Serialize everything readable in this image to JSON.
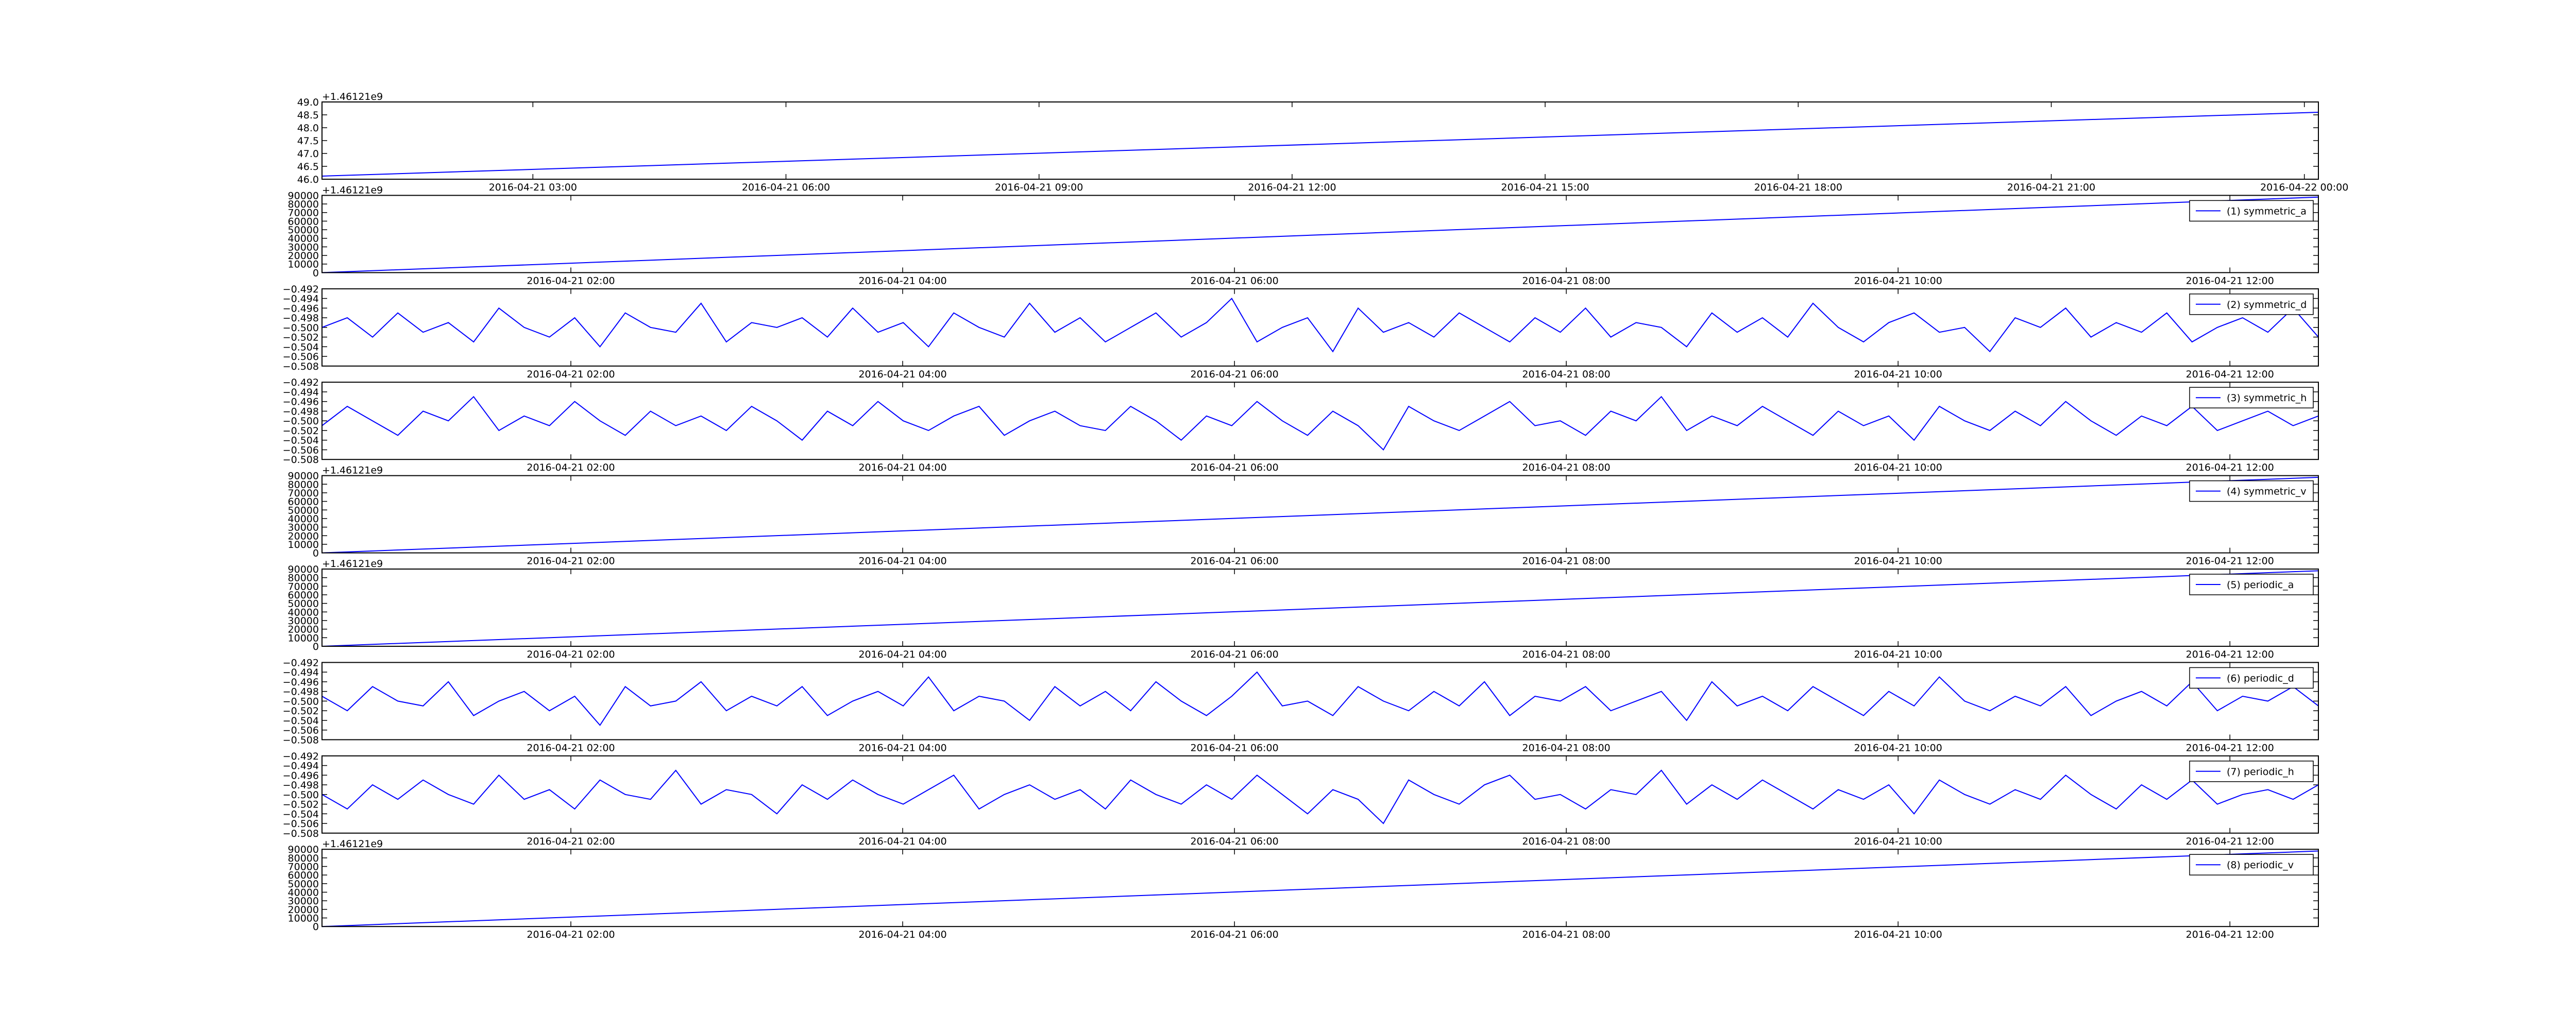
{
  "chart_data": [
    {
      "type": "line",
      "offset_text": "+1.46121e9",
      "color": "#0000ff",
      "values": [
        46.12,
        48.6
      ],
      "xlim": [
        "2016-04-21 00:30",
        "2016-04-22 00:10"
      ],
      "xticks": [
        "2016-04-21 03:00",
        "2016-04-21 06:00",
        "2016-04-21 09:00",
        "2016-04-21 12:00",
        "2016-04-21 15:00",
        "2016-04-21 18:00",
        "2016-04-21 21:00",
        "2016-04-22 00:00"
      ],
      "ylim": [
        46.0,
        49.0
      ],
      "yticks": [
        {
          "value": 46,
          "label": "46.0"
        },
        46.5,
        {
          "value": 47,
          "label": "47.0"
        },
        47.5,
        {
          "value": 48,
          "label": "48.0"
        },
        48.5,
        {
          "value": 49,
          "label": "49.0"
        }
      ]
    },
    {
      "type": "line",
      "offset_text": "+1.46121e9",
      "legend": "upper right",
      "series": [
        {
          "name": "(1) symmetric_a",
          "color": "#0000ff",
          "values": [
            0,
            88000
          ]
        }
      ],
      "xlim": [
        "2016-04-21 00:30",
        "2016-04-21 12:32"
      ],
      "xticks": [
        "2016-04-21 02:00",
        "2016-04-21 04:00",
        "2016-04-21 06:00",
        "2016-04-21 08:00",
        "2016-04-21 10:00",
        "2016-04-21 12:00"
      ],
      "ylim": [
        0,
        90000
      ],
      "yticks": [
        0,
        10000,
        20000,
        30000,
        40000,
        50000,
        60000,
        70000,
        80000,
        90000
      ]
    },
    {
      "type": "line",
      "legend": "upper right",
      "series": [
        {
          "name": "(2) symmetric_d",
          "color": "#0000ff",
          "values": [
            -0.5,
            -0.498,
            -0.502,
            -0.497,
            -0.501,
            -0.499,
            -0.503,
            -0.496,
            -0.5,
            -0.502,
            -0.498,
            -0.504,
            -0.497,
            -0.5,
            -0.501,
            -0.495,
            -0.503,
            -0.499,
            -0.5,
            -0.498,
            -0.502,
            -0.496,
            -0.501,
            -0.499,
            -0.504,
            -0.497,
            -0.5,
            -0.502,
            -0.495,
            -0.501,
            -0.498,
            -0.503,
            -0.5,
            -0.497,
            -0.502,
            -0.499,
            -0.494,
            -0.503,
            -0.5,
            -0.498,
            -0.505,
            -0.496,
            -0.501,
            -0.499,
            -0.502,
            -0.497,
            -0.5,
            -0.503,
            -0.498,
            -0.501,
            -0.496,
            -0.502,
            -0.499,
            -0.5,
            -0.504,
            -0.497,
            -0.501,
            -0.498,
            -0.502,
            -0.495,
            -0.5,
            -0.503,
            -0.499,
            -0.497,
            -0.501,
            -0.5,
            -0.505,
            -0.498,
            -0.5,
            -0.496,
            -0.502,
            -0.499,
            -0.501,
            -0.497,
            -0.503,
            -0.5,
            -0.498,
            -0.501,
            -0.496,
            -0.502
          ]
        }
      ],
      "xlim": [
        "2016-04-21 00:30",
        "2016-04-21 12:32"
      ],
      "xticks": [
        "2016-04-21 02:00",
        "2016-04-21 04:00",
        "2016-04-21 06:00",
        "2016-04-21 08:00",
        "2016-04-21 10:00",
        "2016-04-21 12:00"
      ],
      "ylim": [
        -0.508,
        -0.492
      ],
      "yticks": [
        {
          "value": -0.508,
          "label": "−0.508"
        },
        {
          "value": -0.506,
          "label": "−0.506"
        },
        {
          "value": -0.504,
          "label": "−0.504"
        },
        {
          "value": -0.502,
          "label": "−0.502"
        },
        {
          "value": -0.5,
          "label": "−0.500"
        },
        {
          "value": -0.498,
          "label": "−0.498"
        },
        {
          "value": -0.496,
          "label": "−0.496"
        },
        {
          "value": -0.494,
          "label": "−0.494"
        },
        {
          "value": -0.492,
          "label": "−0.492"
        }
      ]
    },
    {
      "type": "line",
      "legend": "upper right",
      "series": [
        {
          "name": "(3) symmetric_h",
          "color": "#0000ff",
          "values": [
            -0.501,
            -0.497,
            -0.5,
            -0.503,
            -0.498,
            -0.5,
            -0.495,
            -0.502,
            -0.499,
            -0.501,
            -0.496,
            -0.5,
            -0.503,
            -0.498,
            -0.501,
            -0.499,
            -0.502,
            -0.497,
            -0.5,
            -0.504,
            -0.498,
            -0.501,
            -0.496,
            -0.5,
            -0.502,
            -0.499,
            -0.497,
            -0.503,
            -0.5,
            -0.498,
            -0.501,
            -0.502,
            -0.497,
            -0.5,
            -0.504,
            -0.499,
            -0.501,
            -0.496,
            -0.5,
            -0.503,
            -0.498,
            -0.501,
            -0.506,
            -0.497,
            -0.5,
            -0.502,
            -0.499,
            -0.496,
            -0.501,
            -0.5,
            -0.503,
            -0.498,
            -0.5,
            -0.495,
            -0.502,
            -0.499,
            -0.501,
            -0.497,
            -0.5,
            -0.503,
            -0.498,
            -0.501,
            -0.499,
            -0.504,
            -0.497,
            -0.5,
            -0.502,
            -0.498,
            -0.501,
            -0.496,
            -0.5,
            -0.503,
            -0.499,
            -0.501,
            -0.497,
            -0.502,
            -0.5,
            -0.498,
            -0.501,
            -0.499
          ]
        }
      ],
      "xlim": [
        "2016-04-21 00:30",
        "2016-04-21 12:32"
      ],
      "xticks": [
        "2016-04-21 02:00",
        "2016-04-21 04:00",
        "2016-04-21 06:00",
        "2016-04-21 08:00",
        "2016-04-21 10:00",
        "2016-04-21 12:00"
      ],
      "ylim": [
        -0.508,
        -0.492
      ],
      "yticks": [
        {
          "value": -0.508,
          "label": "−0.508"
        },
        {
          "value": -0.506,
          "label": "−0.506"
        },
        {
          "value": -0.504,
          "label": "−0.504"
        },
        {
          "value": -0.502,
          "label": "−0.502"
        },
        {
          "value": -0.5,
          "label": "−0.500"
        },
        {
          "value": -0.498,
          "label": "−0.498"
        },
        {
          "value": -0.496,
          "label": "−0.496"
        },
        {
          "value": -0.494,
          "label": "−0.494"
        },
        {
          "value": -0.492,
          "label": "−0.492"
        }
      ]
    },
    {
      "type": "line",
      "offset_text": "+1.46121e9",
      "legend": "upper right",
      "series": [
        {
          "name": "(4) symmetric_v",
          "color": "#0000ff",
          "values": [
            0,
            88000
          ]
        }
      ],
      "xlim": [
        "2016-04-21 00:30",
        "2016-04-21 12:32"
      ],
      "xticks": [
        "2016-04-21 02:00",
        "2016-04-21 04:00",
        "2016-04-21 06:00",
        "2016-04-21 08:00",
        "2016-04-21 10:00",
        "2016-04-21 12:00"
      ],
      "ylim": [
        0,
        90000
      ],
      "yticks": [
        0,
        10000,
        20000,
        30000,
        40000,
        50000,
        60000,
        70000,
        80000,
        90000
      ]
    },
    {
      "type": "line",
      "offset_text": "+1.46121e9",
      "legend": "upper right",
      "series": [
        {
          "name": "(5) periodic_a",
          "color": "#0000ff",
          "values": [
            0,
            88000
          ]
        }
      ],
      "xlim": [
        "2016-04-21 00:30",
        "2016-04-21 12:32"
      ],
      "xticks": [
        "2016-04-21 02:00",
        "2016-04-21 04:00",
        "2016-04-21 06:00",
        "2016-04-21 08:00",
        "2016-04-21 10:00",
        "2016-04-21 12:00"
      ],
      "ylim": [
        0,
        90000
      ],
      "yticks": [
        0,
        10000,
        20000,
        30000,
        40000,
        50000,
        60000,
        70000,
        80000,
        90000
      ]
    },
    {
      "type": "line",
      "legend": "upper right",
      "series": [
        {
          "name": "(6) periodic_d",
          "color": "#0000ff",
          "values": [
            -0.499,
            -0.502,
            -0.497,
            -0.5,
            -0.501,
            -0.496,
            -0.503,
            -0.5,
            -0.498,
            -0.502,
            -0.499,
            -0.505,
            -0.497,
            -0.501,
            -0.5,
            -0.496,
            -0.502,
            -0.499,
            -0.501,
            -0.497,
            -0.503,
            -0.5,
            -0.498,
            -0.501,
            -0.495,
            -0.502,
            -0.499,
            -0.5,
            -0.504,
            -0.497,
            -0.501,
            -0.498,
            -0.502,
            -0.496,
            -0.5,
            -0.503,
            -0.499,
            -0.494,
            -0.501,
            -0.5,
            -0.503,
            -0.497,
            -0.5,
            -0.502,
            -0.498,
            -0.501,
            -0.496,
            -0.503,
            -0.499,
            -0.5,
            -0.497,
            -0.502,
            -0.5,
            -0.498,
            -0.504,
            -0.496,
            -0.501,
            -0.499,
            -0.502,
            -0.497,
            -0.5,
            -0.503,
            -0.498,
            -0.501,
            -0.495,
            -0.5,
            -0.502,
            -0.499,
            -0.501,
            -0.497,
            -0.503,
            -0.5,
            -0.498,
            -0.501,
            -0.496,
            -0.502,
            -0.499,
            -0.5,
            -0.497,
            -0.501
          ]
        }
      ],
      "xlim": [
        "2016-04-21 00:30",
        "2016-04-21 12:32"
      ],
      "xticks": [
        "2016-04-21 02:00",
        "2016-04-21 04:00",
        "2016-04-21 06:00",
        "2016-04-21 08:00",
        "2016-04-21 10:00",
        "2016-04-21 12:00"
      ],
      "ylim": [
        -0.508,
        -0.492
      ],
      "yticks": [
        {
          "value": -0.508,
          "label": "−0.508"
        },
        {
          "value": -0.506,
          "label": "−0.506"
        },
        {
          "value": -0.504,
          "label": "−0.504"
        },
        {
          "value": -0.502,
          "label": "−0.502"
        },
        {
          "value": -0.5,
          "label": "−0.500"
        },
        {
          "value": -0.498,
          "label": "−0.498"
        },
        {
          "value": -0.496,
          "label": "−0.496"
        },
        {
          "value": -0.494,
          "label": "−0.494"
        },
        {
          "value": -0.492,
          "label": "−0.492"
        }
      ]
    },
    {
      "type": "line",
      "legend": "upper right",
      "series": [
        {
          "name": "(7) periodic_h",
          "color": "#0000ff",
          "values": [
            -0.5,
            -0.503,
            -0.498,
            -0.501,
            -0.497,
            -0.5,
            -0.502,
            -0.496,
            -0.501,
            -0.499,
            -0.503,
            -0.497,
            -0.5,
            -0.501,
            -0.495,
            -0.502,
            -0.499,
            -0.5,
            -0.504,
            -0.498,
            -0.501,
            -0.497,
            -0.5,
            -0.502,
            -0.499,
            -0.496,
            -0.503,
            -0.5,
            -0.498,
            -0.501,
            -0.499,
            -0.503,
            -0.497,
            -0.5,
            -0.502,
            -0.498,
            -0.501,
            -0.496,
            -0.5,
            -0.504,
            -0.499,
            -0.501,
            -0.506,
            -0.497,
            -0.5,
            -0.502,
            -0.498,
            -0.496,
            -0.501,
            -0.5,
            -0.503,
            -0.499,
            -0.5,
            -0.495,
            -0.502,
            -0.498,
            -0.501,
            -0.497,
            -0.5,
            -0.503,
            -0.499,
            -0.501,
            -0.498,
            -0.504,
            -0.497,
            -0.5,
            -0.502,
            -0.499,
            -0.501,
            -0.496,
            -0.5,
            -0.503,
            -0.498,
            -0.501,
            -0.497,
            -0.502,
            -0.5,
            -0.499,
            -0.501,
            -0.498
          ]
        }
      ],
      "xlim": [
        "2016-04-21 00:30",
        "2016-04-21 12:32"
      ],
      "xticks": [
        "2016-04-21 02:00",
        "2016-04-21 04:00",
        "2016-04-21 06:00",
        "2016-04-21 08:00",
        "2016-04-21 10:00",
        "2016-04-21 12:00"
      ],
      "ylim": [
        -0.508,
        -0.492
      ],
      "yticks": [
        {
          "value": -0.508,
          "label": "−0.508"
        },
        {
          "value": -0.506,
          "label": "−0.506"
        },
        {
          "value": -0.504,
          "label": "−0.504"
        },
        {
          "value": -0.502,
          "label": "−0.502"
        },
        {
          "value": -0.5,
          "label": "−0.500"
        },
        {
          "value": -0.498,
          "label": "−0.498"
        },
        {
          "value": -0.496,
          "label": "−0.496"
        },
        {
          "value": -0.494,
          "label": "−0.494"
        },
        {
          "value": -0.492,
          "label": "−0.492"
        }
      ]
    },
    {
      "type": "line",
      "offset_text": "+1.46121e9",
      "legend": "upper right",
      "series": [
        {
          "name": "(8) periodic_v",
          "color": "#0000ff",
          "values": [
            0,
            88000
          ]
        }
      ],
      "xlim": [
        "2016-04-21 00:30",
        "2016-04-21 12:32"
      ],
      "xticks": [
        "2016-04-21 02:00",
        "2016-04-21 04:00",
        "2016-04-21 06:00",
        "2016-04-21 08:00",
        "2016-04-21 10:00",
        "2016-04-21 12:00"
      ],
      "ylim": [
        0,
        90000
      ],
      "yticks": [
        0,
        10000,
        20000,
        30000,
        40000,
        50000,
        60000,
        70000,
        80000,
        90000
      ]
    }
  ]
}
